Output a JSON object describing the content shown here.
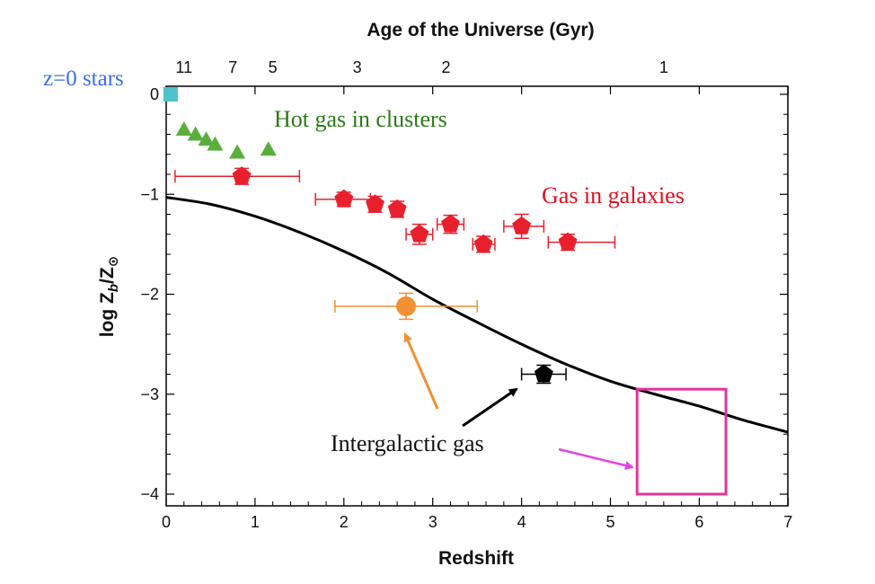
{
  "chart_data": {
    "type": "scatter",
    "top_axis_title": "Age of the Universe (Gyr)",
    "xlabel": "Redshift",
    "ylabel_main": "log Z",
    "ylabel_sub": "b",
    "ylabel_tail": "/Z",
    "ylabel_sun": "⊙",
    "xlim": [
      0,
      7
    ],
    "ylim": [
      -4.1,
      0.05
    ],
    "x_ticks": [
      "0",
      "1",
      "2",
      "3",
      "4",
      "5",
      "6",
      "7"
    ],
    "y_ticks": [
      "0",
      "−1",
      "−2",
      "−3",
      "−4"
    ],
    "top_ticks": [
      {
        "label": "11",
        "z": 0.2
      },
      {
        "label": "7",
        "z": 0.75
      },
      {
        "label": "5",
        "z": 1.2
      },
      {
        "label": "3",
        "z": 2.15
      },
      {
        "label": "2",
        "z": 3.15
      },
      {
        "label": "1",
        "z": 5.6
      }
    ],
    "annotations": {
      "z0_stars": "z=0 stars",
      "hot_gas": "Hot gas in clusters",
      "gas_galaxies": "Gas in galaxies",
      "intergalactic": "Intergalactic gas"
    },
    "colors": {
      "z0_stars": "#4ec3cc",
      "hot_gas": "#5aae3c",
      "gas_galaxies": "#e8202e",
      "orange_point": "#f29034",
      "black_point": "#000000",
      "box": "#e0359a",
      "arrow_pink": "#e641e6",
      "curve": "#000000",
      "annot_blue": "#3b6fe3",
      "annot_green": "#2b7a18",
      "annot_red": "#e01020"
    },
    "series": [
      {
        "name": "z=0 stars",
        "marker": "square",
        "points": [
          {
            "x": 0.05,
            "y": 0.0
          }
        ]
      },
      {
        "name": "Hot gas in clusters",
        "marker": "triangle",
        "points": [
          {
            "x": 0.2,
            "y": -0.35
          },
          {
            "x": 0.33,
            "y": -0.4
          },
          {
            "x": 0.45,
            "y": -0.45
          },
          {
            "x": 0.55,
            "y": -0.5
          },
          {
            "x": 0.8,
            "y": -0.58
          },
          {
            "x": 1.15,
            "y": -0.55
          }
        ]
      },
      {
        "name": "Gas in galaxies",
        "marker": "pentagon",
        "points": [
          {
            "x": 0.85,
            "y": -0.82,
            "xerr": [
              0.1,
              1.5
            ],
            "yerr": 0.08
          },
          {
            "x": 2.0,
            "y": -1.05,
            "xerr": [
              1.68,
              2.3
            ],
            "yerr": 0.07
          },
          {
            "x": 2.35,
            "y": -1.1,
            "yerr": 0.08
          },
          {
            "x": 2.6,
            "y": -1.15,
            "yerr": 0.08
          },
          {
            "x": 2.85,
            "y": -1.4,
            "xerr": [
              2.7,
              3.0
            ],
            "yerr": 0.1
          },
          {
            "x": 3.2,
            "y": -1.3,
            "xerr": [
              3.05,
              3.35
            ],
            "yerr": 0.09
          },
          {
            "x": 3.57,
            "y": -1.5,
            "xerr": [
              3.45,
              3.7
            ],
            "yerr": 0.08
          },
          {
            "x": 4.0,
            "y": -1.32,
            "xerr": [
              3.8,
              4.25
            ],
            "yerr": 0.12
          },
          {
            "x": 4.52,
            "y": -1.48,
            "xerr": [
              4.3,
              5.05
            ],
            "yerr": 0.08
          }
        ]
      },
      {
        "name": "Orange point",
        "marker": "circle",
        "points": [
          {
            "x": 2.7,
            "y": -2.12,
            "xerr": [
              1.9,
              3.5
            ],
            "yerr": 0.13
          }
        ]
      },
      {
        "name": "Intergalactic gas",
        "marker": "pentagon-black",
        "points": [
          {
            "x": 4.25,
            "y": -2.8,
            "xerr": [
              4.0,
              4.5
            ],
            "yerr": 0.09
          }
        ]
      }
    ],
    "curve": {
      "name": "model",
      "x": [
        0,
        0.5,
        1,
        1.5,
        2,
        2.5,
        3,
        3.5,
        4,
        4.5,
        5,
        5.5,
        6,
        6.5,
        7
      ],
      "y": [
        -1.03,
        -1.1,
        -1.22,
        -1.38,
        -1.57,
        -1.79,
        -2.05,
        -2.28,
        -2.5,
        -2.7,
        -2.87,
        -3.0,
        -3.12,
        -3.26,
        -3.38
      ]
    },
    "box": {
      "x": [
        5.3,
        6.3
      ],
      "y": [
        -4.0,
        -2.95
      ]
    }
  }
}
